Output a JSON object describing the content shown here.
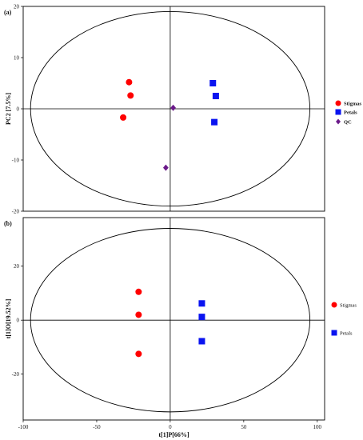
{
  "chart_data": [
    {
      "type": "scatter",
      "panel_label": "(a)",
      "ylabel": "PC2 [7.5%]",
      "xlabel": "",
      "xlim": [
        -100,
        105
      ],
      "ylim": [
        -20,
        20
      ],
      "x_ticks": [],
      "y_ticks": [
        "20",
        "10",
        "0",
        "-10",
        "-20"
      ],
      "y_tick_values": [
        20,
        10,
        0,
        -10,
        -20
      ],
      "ellipse": {
        "cx": 0,
        "cy": 0,
        "rx": 95,
        "ry": 19
      },
      "legend_position": "right",
      "series": [
        {
          "name": "Stigmas",
          "marker": "circle",
          "color": "#ff0000",
          "points": [
            [
              -28,
              5.2
            ],
            [
              -27,
              2.6
            ],
            [
              -32,
              -1.7
            ]
          ]
        },
        {
          "name": "Petals",
          "marker": "square",
          "color": "#0a14f0",
          "points": [
            [
              29,
              5.0
            ],
            [
              31,
              2.5
            ],
            [
              30,
              -2.6
            ]
          ]
        },
        {
          "name": "QC",
          "marker": "diamond",
          "color": "#6b1a8a",
          "points": [
            [
              2,
              0.2
            ],
            [
              -3,
              -11.5
            ]
          ]
        }
      ]
    },
    {
      "type": "scatter",
      "panel_label": "(b)",
      "ylabel": "t[1]O[19.52%]",
      "xlabel": "t[1]P[66%]",
      "xlim": [
        -100,
        105
      ],
      "ylim": [
        -37,
        38
      ],
      "x_ticks": [
        "-100",
        "-50",
        "0",
        "50",
        "100"
      ],
      "x_tick_values": [
        -100,
        -50,
        0,
        50,
        100
      ],
      "y_ticks": [
        "20",
        "0",
        "-20"
      ],
      "y_tick_values": [
        20,
        0,
        -20
      ],
      "ellipse": {
        "cx": 0,
        "cy": 0,
        "rx": 95,
        "ry": 34
      },
      "legend_position": "right",
      "series": [
        {
          "name": "Stigmas",
          "marker": "circle",
          "color": "#ff0000",
          "points": [
            [
              -21.5,
              10.5
            ],
            [
              -21.5,
              2
            ],
            [
              -21.5,
              -12.5
            ]
          ]
        },
        {
          "name": "Petals",
          "marker": "square",
          "color": "#0a14f0",
          "points": [
            [
              21.5,
              6.2
            ],
            [
              21.5,
              1.2
            ],
            [
              21.5,
              -7.8
            ]
          ]
        }
      ]
    }
  ]
}
